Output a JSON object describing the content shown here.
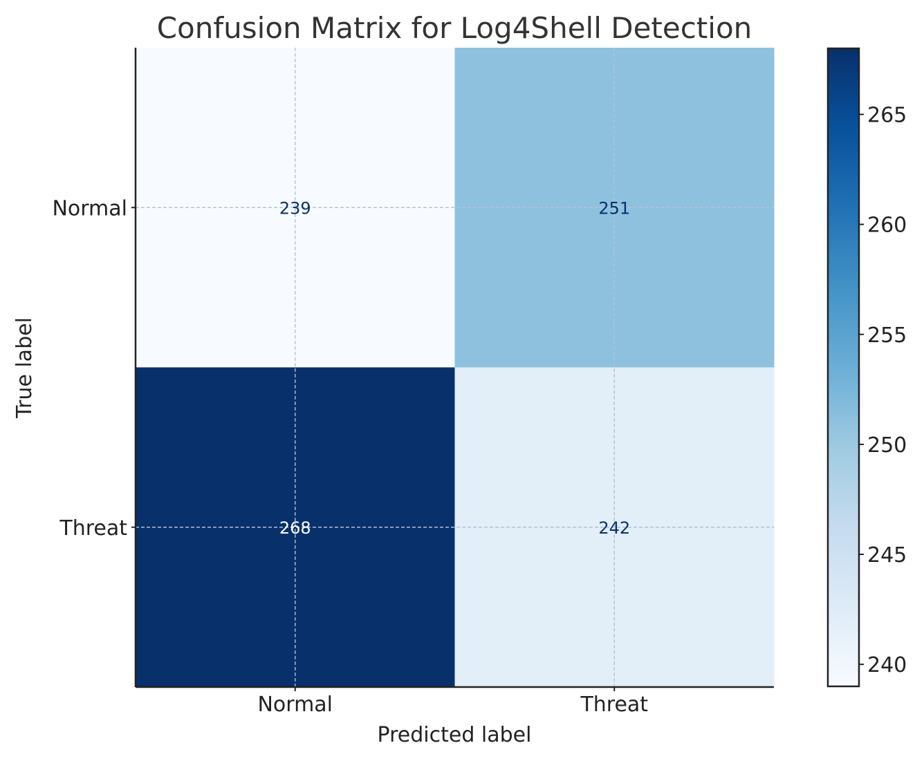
{
  "chart_data": {
    "type": "heatmap",
    "title": "Confusion Matrix for Log4Shell Detection",
    "xlabel": "Predicted label",
    "ylabel": "True label",
    "x_categories": [
      "Normal",
      "Threat"
    ],
    "y_categories": [
      "Normal",
      "Threat"
    ],
    "values": [
      [
        239,
        251
      ],
      [
        268,
        242
      ]
    ],
    "colormap": "Blues",
    "color_range": [
      239,
      268
    ],
    "colorbar_ticks": [
      240,
      245,
      250,
      255,
      260,
      265
    ],
    "colorbar_tick_labels": [
      "240",
      "245",
      "250",
      "255",
      "260",
      "265"
    ],
    "grid": true,
    "colors": {
      "text_on_light": "#08306b",
      "text_on_dark": "#ffffff",
      "title": "#333333",
      "axis": "#222222"
    }
  }
}
